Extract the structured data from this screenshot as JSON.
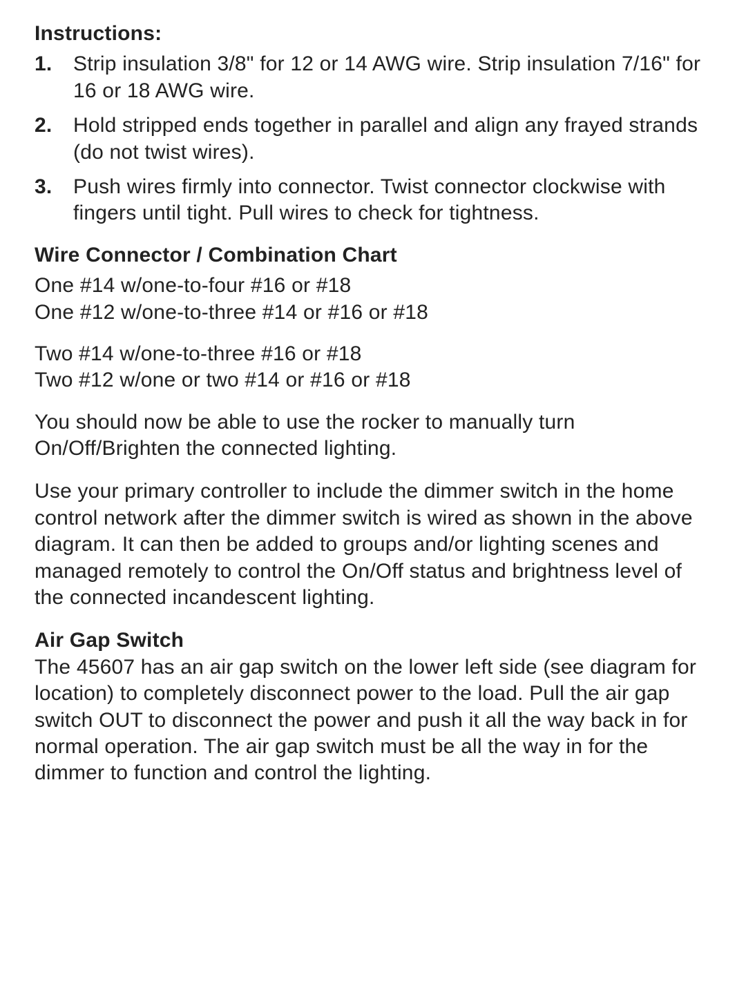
{
  "colors": {
    "text": "#222222",
    "background": "#ffffff"
  },
  "typography": {
    "body_fontsize_pt": 22,
    "heading_weight": 700,
    "body_weight": 400,
    "line_height": 1.28
  },
  "headings": {
    "instructions": "Instructions:",
    "chart": "Wire Connector / Combination Chart",
    "air_gap": "Air Gap Switch"
  },
  "instructions": [
    "Strip insulation 3/8\" for 12 or 14 AWG wire.  Strip insulation 7/16\" for 16 or 18 AWG wire.",
    "Hold stripped ends together in parallel and align any frayed strands (do not twist wires).",
    "Push wires firmly into connector.  Twist connector clockwise with fingers until tight.  Pull wires to check for tightness."
  ],
  "instruction_numbers": [
    "1.",
    "2.",
    "3."
  ],
  "chart_lines_group1": [
    "One #14 w/one-to-four #16 or #18",
    "One #12 w/one-to-three #14 or #16 or #18"
  ],
  "chart_lines_group2": [
    "Two #14 w/one-to-three #16 or #18",
    "Two #12 w/one or two #14 or #16 or #18"
  ],
  "paragraphs": {
    "rocker": "You should now be able to use the rocker to manually turn On/Off/Brighten the connected lighting.",
    "controller": "Use your primary controller to include the dimmer switch in the home control network after the dimmer switch is wired as shown in the above diagram.  It can then be added to groups and/or lighting scenes and managed remotely to control the On/Off status and brightness level of the connected incandescent lighting.",
    "air_gap": "The 45607 has an air gap switch on the lower left side (see diagram for location) to completely disconnect power to the load.  Pull the air gap switch OUT to disconnect the power and push it all the way back in for normal operation.  The air gap switch must be all the way in for the dimmer to function and control the lighting."
  }
}
